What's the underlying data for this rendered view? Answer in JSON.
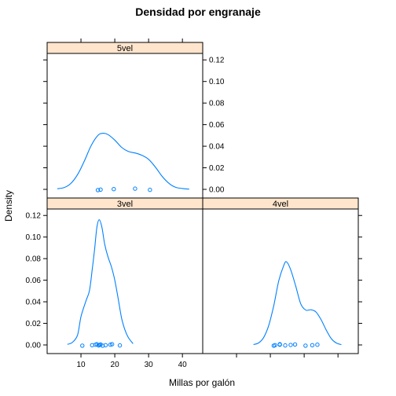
{
  "chart_data": {
    "type": "lattice-density",
    "title": "Densidad por engranaje",
    "xlabel": "Millas por galón",
    "ylabel": "Density",
    "xlim": [
      0,
      46
    ],
    "ylim": [
      -0.008,
      0.126
    ],
    "xticks": [
      10,
      20,
      30,
      40
    ],
    "yticks": [
      0.0,
      0.02,
      0.04,
      0.06,
      0.08,
      0.1,
      0.12
    ],
    "ytick_labels": [
      "0.00",
      "0.02",
      "0.04",
      "0.06",
      "0.08",
      "0.10",
      "0.12"
    ],
    "grid": false,
    "colors": {
      "line": "#0080ff",
      "strip": "#ffe5cc",
      "frame": "#000000"
    },
    "panels": [
      {
        "name": "5vel",
        "density": [
          [
            3.0,
            0.0006
          ],
          [
            5.0,
            0.0016
          ],
          [
            7.0,
            0.0055
          ],
          [
            9.0,
            0.0137
          ],
          [
            11.0,
            0.0262
          ],
          [
            13.0,
            0.0405
          ],
          [
            15.0,
            0.05
          ],
          [
            16.5,
            0.052
          ],
          [
            18.0,
            0.0508
          ],
          [
            20.0,
            0.0457
          ],
          [
            22.0,
            0.039
          ],
          [
            24.0,
            0.0351
          ],
          [
            26.0,
            0.0337
          ],
          [
            28.0,
            0.0316
          ],
          [
            30.0,
            0.0278
          ],
          [
            32.0,
            0.0207
          ],
          [
            34.0,
            0.0121
          ],
          [
            36.0,
            0.0056
          ],
          [
            38.0,
            0.0019
          ],
          [
            40.0,
            0.0008
          ],
          [
            42.0,
            0.0002
          ]
        ],
        "points": [
          15.0,
          15.8,
          19.7,
          26.0,
          30.4
        ]
      },
      {
        "name": "3vel",
        "density": [
          [
            6.0,
            0.0005
          ],
          [
            7.5,
            0.0025
          ],
          [
            9.0,
            0.0092
          ],
          [
            10.0,
            0.0261
          ],
          [
            11.5,
            0.041
          ],
          [
            12.5,
            0.0502
          ],
          [
            13.3,
            0.069
          ],
          [
            14.0,
            0.088
          ],
          [
            14.7,
            0.109
          ],
          [
            15.4,
            0.116
          ],
          [
            16.2,
            0.109
          ],
          [
            17.0,
            0.0935
          ],
          [
            18.0,
            0.0815
          ],
          [
            19.0,
            0.0725
          ],
          [
            20.0,
            0.06
          ],
          [
            21.0,
            0.043
          ],
          [
            22.0,
            0.025
          ],
          [
            23.0,
            0.014
          ],
          [
            24.0,
            0.0069
          ],
          [
            25.4,
            0.0012
          ]
        ],
        "points": [
          10.4,
          13.3,
          14.3,
          14.7,
          15.2,
          15.5,
          15.8,
          16.4,
          17.3,
          18.7,
          19.2,
          21.5
        ]
      },
      {
        "name": "4vel",
        "density": [
          [
            15.0,
            0.0004
          ],
          [
            16.5,
            0.0018
          ],
          [
            18.0,
            0.0068
          ],
          [
            19.5,
            0.0178
          ],
          [
            21.0,
            0.0363
          ],
          [
            22.5,
            0.0596
          ],
          [
            24.0,
            0.074
          ],
          [
            24.8,
            0.077
          ],
          [
            26.0,
            0.0698
          ],
          [
            27.5,
            0.0545
          ],
          [
            29.0,
            0.038
          ],
          [
            30.5,
            0.0323
          ],
          [
            32.0,
            0.0326
          ],
          [
            33.5,
            0.0305
          ],
          [
            35.0,
            0.0234
          ],
          [
            36.5,
            0.0139
          ],
          [
            38.0,
            0.0059
          ],
          [
            39.5,
            0.0018
          ],
          [
            41.0,
            0.0003
          ]
        ],
        "points": [
          21.0,
          21.4,
          22.8,
          22.8,
          24.4,
          26.0,
          27.3,
          30.4,
          32.4,
          33.9
        ]
      }
    ]
  }
}
